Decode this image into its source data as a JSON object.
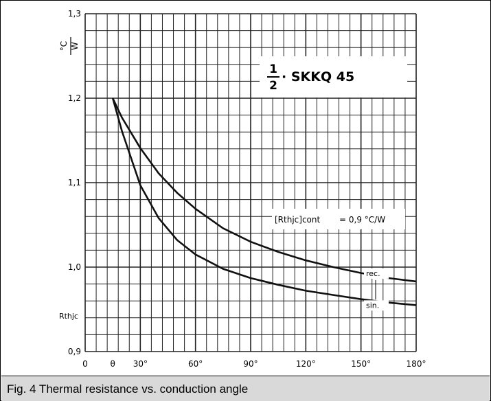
{
  "caption": "Fig. 4 Thermal resistance vs. conduction angle",
  "chart_data": {
    "type": "line",
    "title_numerator": "1",
    "title_denominator": "2",
    "title_text": "· SKKQ 45",
    "y_unit_top": "°C",
    "y_unit_bottom": "W",
    "y_symbol": "Rthjc",
    "xlim": [
      0,
      180
    ],
    "ylim": [
      0.9,
      1.3
    ],
    "x_ticks": [
      {
        "value": 0,
        "label": "0"
      },
      {
        "value": 15,
        "label": "θ"
      },
      {
        "value": 30,
        "label": "30°"
      },
      {
        "value": 60,
        "label": "60°"
      },
      {
        "value": 90,
        "label": "90°"
      },
      {
        "value": 120,
        "label": "120°"
      },
      {
        "value": 150,
        "label": "150°"
      },
      {
        "value": 180,
        "label": "180°"
      }
    ],
    "y_ticks": [
      {
        "value": 0.9,
        "label": "0,9"
      },
      {
        "value": 1.0,
        "label": "1,0"
      },
      {
        "value": 1.1,
        "label": "1,1"
      },
      {
        "value": 1.2,
        "label": "1,2"
      },
      {
        "value": 1.3,
        "label": "1,3"
      }
    ],
    "annotation_main": "[Rthjc]cont",
    "annotation_value": "= 0,9 °C/W",
    "series": [
      {
        "name": "rec.",
        "x": [
          15,
          20,
          30,
          40,
          50,
          60,
          75,
          90,
          105,
          120,
          135,
          150,
          165,
          180
        ],
        "y": [
          1.2,
          1.177,
          1.141,
          1.111,
          1.088,
          1.069,
          1.046,
          1.03,
          1.018,
          1.008,
          1.0,
          0.993,
          0.987,
          0.983
        ]
      },
      {
        "name": "sin.",
        "x": [
          15,
          20,
          30,
          40,
          50,
          60,
          75,
          90,
          105,
          120,
          135,
          150,
          165,
          180
        ],
        "y": [
          1.2,
          1.161,
          1.097,
          1.058,
          1.032,
          1.015,
          0.998,
          0.987,
          0.979,
          0.972,
          0.967,
          0.962,
          0.958,
          0.955
        ]
      }
    ],
    "series_color": "#111111",
    "grid_color": "#222222"
  }
}
